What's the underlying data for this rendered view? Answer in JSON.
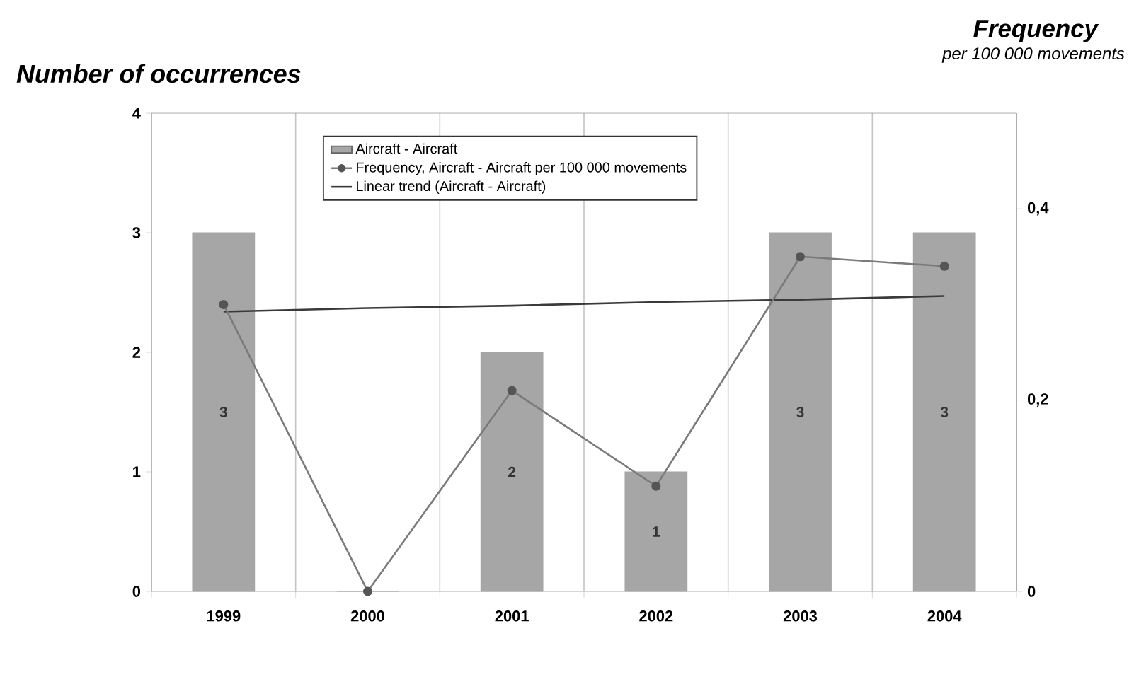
{
  "chart_data": {
    "type": "bar",
    "ylabel": "Number of occurrences",
    "y2label": "Frequency",
    "annotations": [
      "per 100 000 movements"
    ],
    "categories": [
      "1999",
      "2000",
      "2001",
      "2002",
      "2003",
      "2004"
    ],
    "series": [
      {
        "name": "Aircraft - Aircraft",
        "color": "#a6a6a6",
        "values": [
          3,
          0,
          2,
          1,
          3,
          3
        ],
        "value_labels": [
          "3",
          null,
          "2",
          "1",
          "3",
          "3"
        ]
      },
      {
        "name": "Frequency, Aircraft - Aircraft per 100 000 movements",
        "type": "line",
        "axis": "y2",
        "color": "#7a7a7a",
        "marker": "circle",
        "line_style": "solid",
        "values": [
          0.3,
          0,
          0.21,
          0.11,
          0.35,
          0.34
        ]
      },
      {
        "name": "Linear trend (Aircraft - Aircraft)",
        "type": "line",
        "color": "#3a3a3a",
        "marker": "none",
        "line_style": "solid",
        "values": [
          2.34,
          2.37,
          2.39,
          2.42,
          2.44,
          2.47
        ]
      }
    ],
    "ylim": [
      0,
      4
    ],
    "yticks": [
      0,
      1,
      2,
      3,
      4
    ],
    "y2lim": [
      0,
      0.5
    ],
    "y2ticks": [
      0,
      {
        "value": 0.2,
        "label": "0,2"
      },
      {
        "value": 0.4,
        "label": "0,4"
      }
    ],
    "grid": "x",
    "legend": "top"
  }
}
